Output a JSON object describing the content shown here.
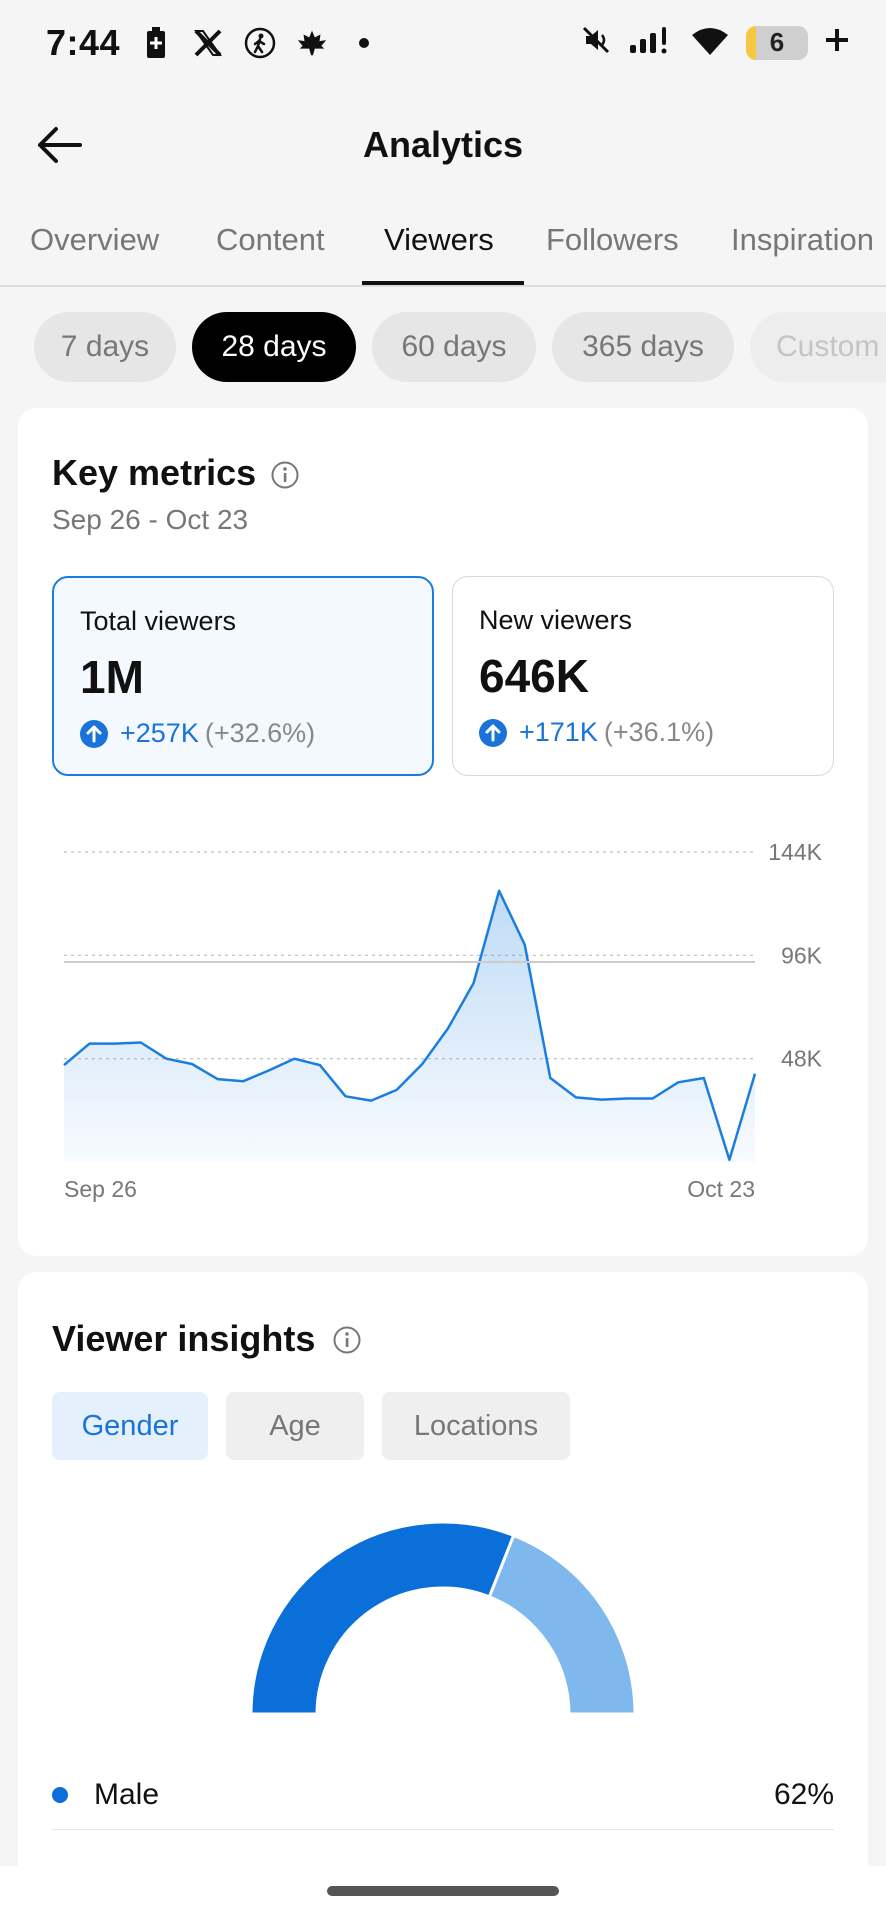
{
  "status_bar": {
    "time": "7:44",
    "battery_level": "6"
  },
  "header": {
    "title": "Analytics"
  },
  "tabs": [
    {
      "label": "Overview"
    },
    {
      "label": "Content"
    },
    {
      "label": "Viewers",
      "active": true
    },
    {
      "label": "Followers"
    },
    {
      "label": "Inspiration"
    }
  ],
  "periods": [
    {
      "label": "7 days"
    },
    {
      "label": "28 days",
      "active": true
    },
    {
      "label": "60 days"
    },
    {
      "label": "365 days"
    },
    {
      "label": "Custom"
    }
  ],
  "key_metrics": {
    "title": "Key metrics",
    "date_range": "Sep 26 - Oct 23",
    "cards": [
      {
        "label": "Total viewers",
        "value": "1M",
        "delta": "+257K",
        "pct": "(+32.6%)",
        "selected": true
      },
      {
        "label": "New viewers",
        "value": "646K",
        "delta": "+171K",
        "pct": "(+36.1%)",
        "selected": false
      }
    ]
  },
  "chart_data": {
    "type": "area",
    "x_start_label": "Sep 26",
    "x_end_label": "Oct 23",
    "y_ticks": [
      "144K",
      "96K",
      "48K"
    ],
    "y_tick_values": [
      144000,
      96000,
      48000
    ],
    "ylim": [
      0,
      144000
    ],
    "grid": true,
    "color": "#1a7de0",
    "values": [
      45000,
      55000,
      55000,
      55500,
      48000,
      45500,
      38500,
      37500,
      42500,
      48000,
      45000,
      30500,
      28500,
      33500,
      45500,
      62000,
      83000,
      126000,
      101000,
      39000,
      30000,
      29000,
      29500,
      29500,
      37000,
      39000,
      1000,
      41000
    ]
  },
  "viewer_insights": {
    "title": "Viewer insights",
    "segments": [
      {
        "label": "Gender",
        "active": true
      },
      {
        "label": "Age"
      },
      {
        "label": "Locations"
      }
    ],
    "gender": [
      {
        "label": "Male",
        "value": "62%",
        "fraction": 0.62,
        "color": "#0a6fd8"
      },
      {
        "fraction": 0.38,
        "color": "#7fb8ec"
      }
    ]
  }
}
